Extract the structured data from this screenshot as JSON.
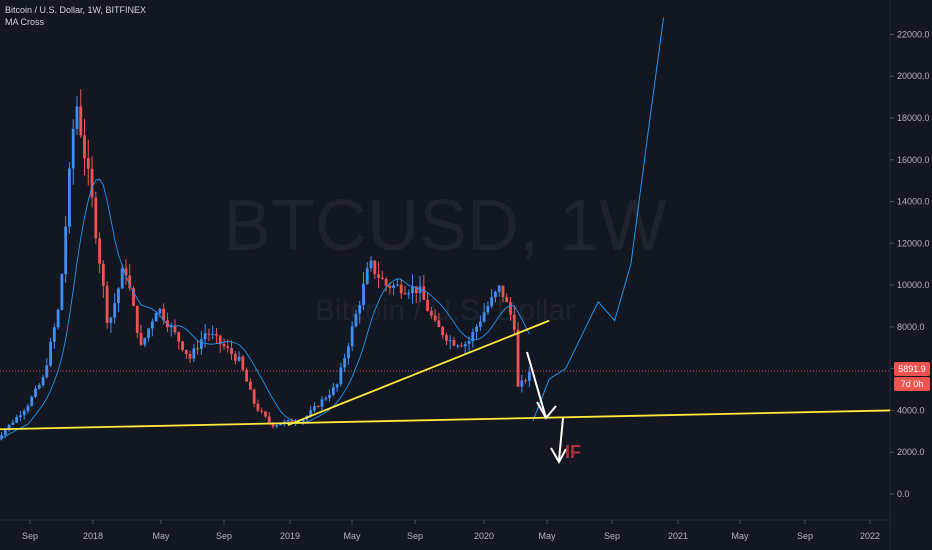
{
  "header": {
    "title": "Bitcoin / U.S. Dollar, 1W, BITFINEX",
    "indicator": "MA Cross"
  },
  "watermark": {
    "symbol": "BTCUSD, 1W",
    "name": "Bitcoin / U.S. Dollar"
  },
  "price_badge": {
    "last_price": "5891.9",
    "countdown": "7d 0h"
  },
  "annotation": "IF",
  "colors": {
    "background": "#131722",
    "up": "#3f8ef5",
    "down": "#ef5350",
    "ma": "#2196f3",
    "trendline": "#ffeb3b",
    "arrow": "#ffffff",
    "if_text": "#b0303a"
  },
  "chart_data": {
    "type": "candlestick",
    "ylim": [
      -1000,
      23000
    ],
    "y_ticks": [
      "22000.0",
      "20000.0",
      "18000.0",
      "16000.0",
      "14000.0",
      "12000.0",
      "10000.0",
      "8000.0",
      "6000.0",
      "4000.0",
      "2000.0",
      "0.0"
    ],
    "x_ticks": [
      "Sep",
      "2018",
      "May",
      "Sep",
      "2019",
      "May",
      "Sep",
      "2020",
      "May",
      "Sep",
      "2021",
      "May",
      "Sep",
      "2022"
    ],
    "price_path": [
      [
        "Jul 2017",
        2500
      ],
      [
        "Sep 2017",
        4200
      ],
      [
        "Oct 2017",
        5500
      ],
      [
        "Nov 2017",
        9000
      ],
      [
        "Dec 2017",
        19000
      ],
      [
        "Jan 2018",
        14000
      ],
      [
        "Feb 2018",
        8000
      ],
      [
        "Mar 2018",
        11000
      ],
      [
        "Apr 2018",
        7000
      ],
      [
        "May 2018",
        9000
      ],
      [
        "Jul 2018",
        6500
      ],
      [
        "Aug 2018",
        7800
      ],
      [
        "Oct 2018",
        6400
      ],
      [
        "Nov 2018",
        4200
      ],
      [
        "Dec 2018",
        3300
      ],
      [
        "Feb 2019",
        3600
      ],
      [
        "Apr 2019",
        5200
      ],
      [
        "Jun 2019",
        11000
      ],
      [
        "Jul 2019",
        10000
      ],
      [
        "Sep 2019",
        9800
      ],
      [
        "Oct 2019",
        8100
      ],
      [
        "Nov 2019",
        7300
      ],
      [
        "Dec 2019",
        7200
      ],
      [
        "Jan 2020",
        8700
      ],
      [
        "Feb 2020",
        9900
      ],
      [
        "Mar 2020",
        7800
      ],
      [
        "Mar 2020",
        5000
      ],
      [
        "Apr 2020",
        5900
      ]
    ],
    "last_price": 5891.9,
    "series": [
      {
        "name": "MA Cross"
      }
    ],
    "projection": [
      [
        "Apr 2020",
        3500
      ],
      [
        "May 2020",
        5500
      ],
      [
        "Jun 2020",
        6000
      ],
      [
        "Aug 2020",
        9200
      ],
      [
        "Sep 2020",
        8300
      ],
      [
        "Oct 2020",
        11000
      ],
      [
        "Nov 2020",
        17000
      ],
      [
        "Dec 2020",
        22800
      ]
    ],
    "trendlines": [
      {
        "from": [
          "Jan 2019",
          3300
        ],
        "to": [
          "May 2020",
          8300
        ]
      },
      {
        "from": [
          "Jul 2017",
          3100
        ],
        "to": [
          "Feb 2022",
          4000
        ]
      }
    ]
  }
}
